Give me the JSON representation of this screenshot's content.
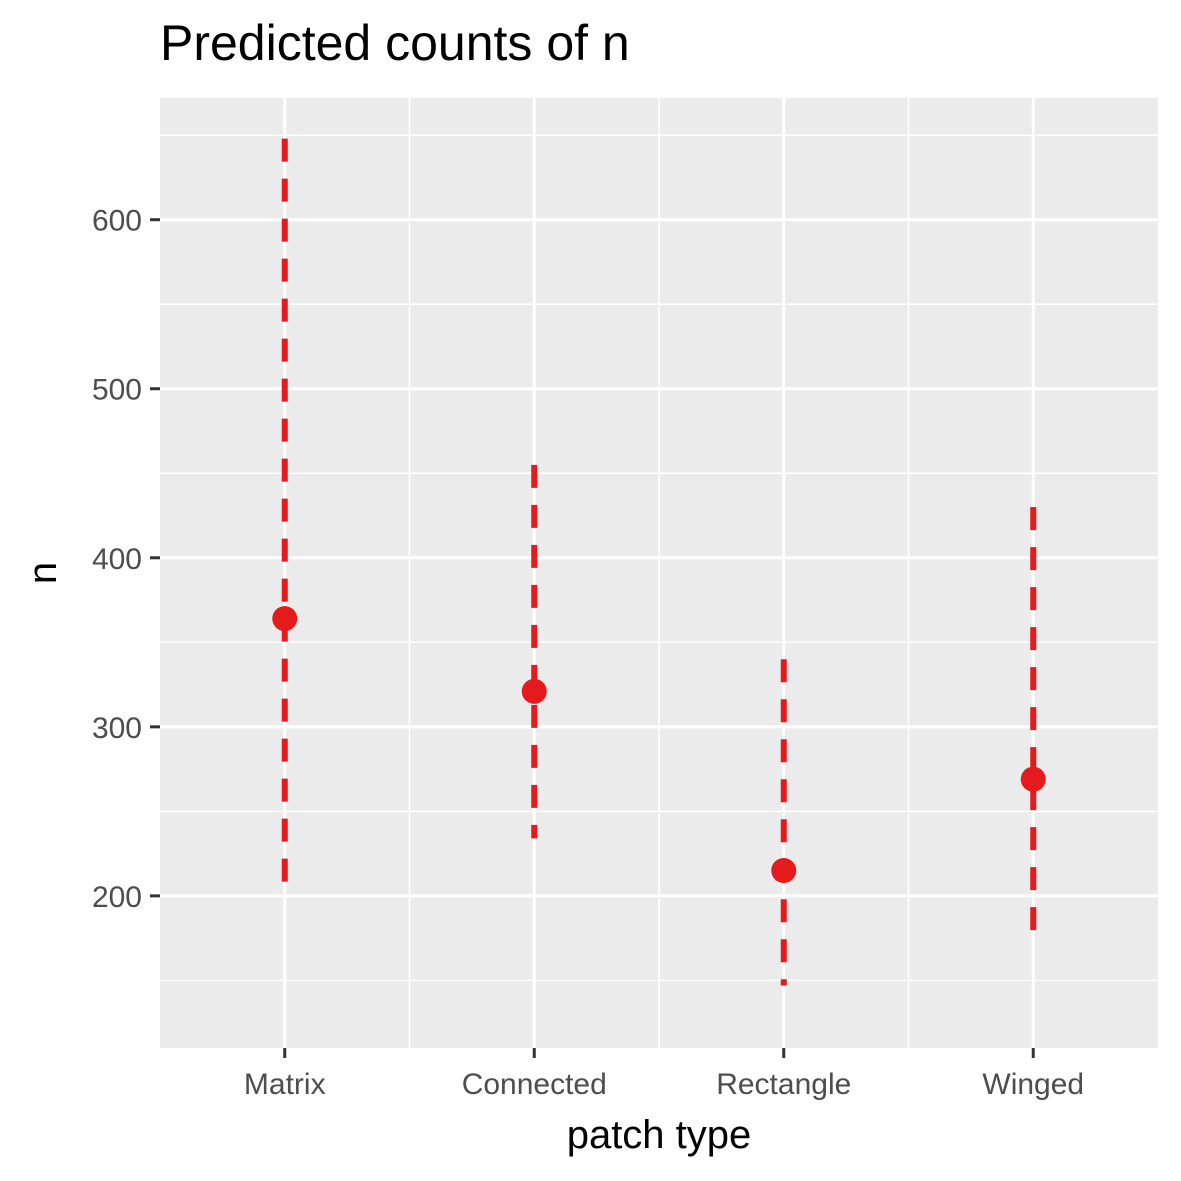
{
  "chart_data": {
    "type": "scatter",
    "title": "Predicted counts of n",
    "xlabel": "patch type",
    "ylabel": "n",
    "categories": [
      "Matrix",
      "Connected",
      "Rectangle",
      "Winged"
    ],
    "series": [
      {
        "values": [
          364,
          321,
          215,
          269
        ],
        "lower": [
          205,
          234,
          147,
          179
        ],
        "upper": [
          648,
          455,
          340,
          430
        ]
      }
    ],
    "yticks": [
      200,
      300,
      400,
      500,
      600
    ],
    "ylim": [
      110,
      672
    ],
    "grid": true,
    "legend": "none",
    "colors": {
      "point": "#e41a1c",
      "panel": "#ebebeb",
      "grid": "#ffffff",
      "tick": "#333333"
    }
  }
}
